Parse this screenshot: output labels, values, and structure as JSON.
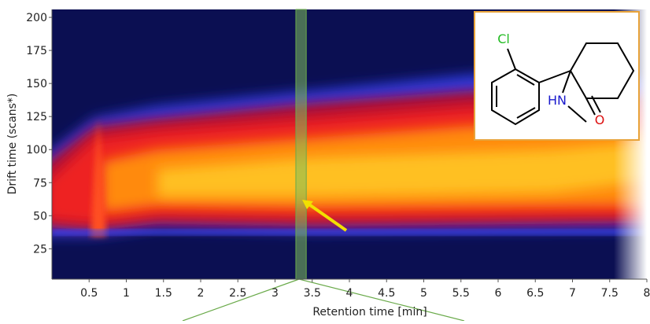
{
  "chart_data": {
    "type": "heatmap",
    "xlabel": "Retention time [min]",
    "ylabel": "Drift time (scans*)",
    "xlim": [
      0,
      8
    ],
    "xticks": [
      0.5,
      1,
      1.5,
      2,
      2.5,
      3,
      3.5,
      4,
      4.5,
      5,
      5.5,
      6,
      6.5,
      7,
      7.5,
      8
    ],
    "ylim": [
      2,
      206
    ],
    "yticks": [
      25,
      50,
      75,
      100,
      125,
      150,
      175,
      200
    ],
    "highlight": [
      3.28,
      3.42
    ],
    "inset_labels": [
      "Cl",
      "HN",
      "O"
    ]
  }
}
